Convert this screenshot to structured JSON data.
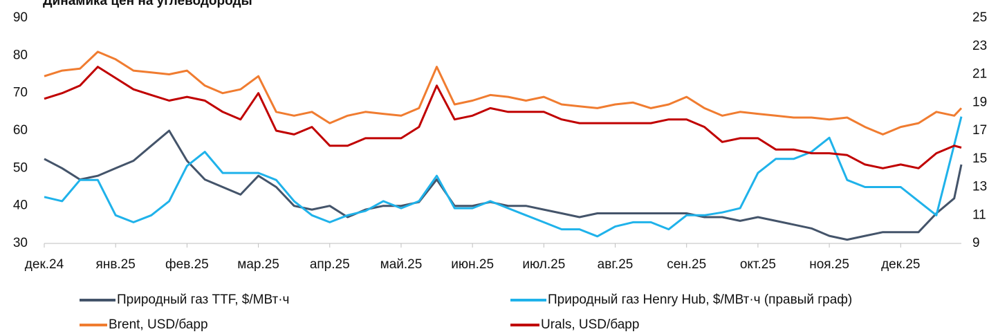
{
  "chart_data": {
    "type": "line",
    "title": "Динамика цен на углеводороды",
    "x": [
      0,
      0.25,
      0.5,
      0.75,
      1,
      1.25,
      1.5,
      1.75,
      2,
      2.25,
      2.5,
      2.75,
      3,
      3.25,
      3.5,
      3.75,
      4,
      4.25,
      4.5,
      4.75,
      5,
      5.25,
      5.5,
      5.75,
      6,
      6.25,
      6.5,
      6.75,
      7,
      7.25,
      7.5,
      7.75,
      8,
      8.25,
      8.5,
      8.75,
      9,
      9.25,
      9.5,
      9.75,
      10,
      10.25,
      10.5,
      10.75,
      11,
      11.25,
      11.5,
      11.75,
      12,
      12.25,
      12.5,
      12.75,
      12.85
    ],
    "xlim": [
      0,
      12.85
    ],
    "xticks": [
      {
        "value": 0,
        "label": "дек.24"
      },
      {
        "value": 1,
        "label": "янв.25"
      },
      {
        "value": 2,
        "label": "фев.25"
      },
      {
        "value": 3,
        "label": "мар.25"
      },
      {
        "value": 4,
        "label": "апр.25"
      },
      {
        "value": 5,
        "label": "май.25"
      },
      {
        "value": 6,
        "label": "июн.25"
      },
      {
        "value": 7,
        "label": "июл.25"
      },
      {
        "value": 8,
        "label": "авг.25"
      },
      {
        "value": 9,
        "label": "сен.25"
      },
      {
        "value": 10,
        "label": "окт.25"
      },
      {
        "value": 11,
        "label": "ноя.25"
      },
      {
        "value": 12,
        "label": "дек.25"
      }
    ],
    "ylim": [
      30,
      90
    ],
    "yticks": [
      30,
      40,
      50,
      60,
      70,
      80,
      90
    ],
    "y2lim": [
      9,
      25
    ],
    "y2ticks": [
      9,
      11,
      13,
      15,
      17,
      19,
      21,
      23,
      25
    ],
    "series": [
      {
        "name": "Природный газ TTF, $/МВт·ч",
        "color": "#44546a",
        "values": [
          52.5,
          50,
          47,
          48,
          50,
          52,
          56,
          60,
          52,
          47,
          45,
          43,
          48,
          45,
          40,
          39,
          40,
          37,
          39,
          40,
          40,
          41,
          47,
          40,
          40,
          41,
          40,
          40,
          39,
          38,
          37,
          38,
          38,
          38,
          38,
          38,
          38,
          37,
          37,
          36,
          37,
          36,
          35,
          34,
          32,
          31,
          32,
          33,
          33,
          33,
          38,
          42,
          51
        ]
      },
      {
        "name": "Природный газ Henry Hub, $/МВт·ч (правый граф)",
        "color": "#1fb2ea",
        "axis": "y2",
        "values": [
          12.3,
          12,
          13.5,
          13.5,
          11,
          10.5,
          11,
          12,
          14.5,
          15.5,
          14,
          14,
          14,
          13.5,
          12,
          11,
          10.5,
          11,
          11.3,
          12,
          11.5,
          12,
          13.8,
          11.5,
          11.5,
          12,
          11.5,
          11,
          10.5,
          10,
          10,
          9.5,
          10.2,
          10.5,
          10.5,
          10,
          11,
          11,
          11.2,
          11.5,
          14,
          15,
          15,
          15.5,
          16.5,
          13.5,
          13,
          13,
          13,
          12,
          11,
          16,
          18
        ]
      },
      {
        "name": "Brent, USD/барр",
        "color": "#f07c30",
        "values": [
          74.5,
          76,
          76.5,
          81,
          79,
          76,
          75.5,
          75,
          76,
          72,
          70,
          71,
          74.5,
          65,
          64,
          65,
          62,
          64,
          65,
          64.5,
          64,
          66,
          77,
          67,
          68,
          69.5,
          69,
          68,
          69,
          67,
          66.5,
          66,
          67,
          67.5,
          66,
          67,
          69,
          66,
          64,
          65,
          64.5,
          64,
          63.5,
          63.5,
          63,
          63.5,
          61,
          59,
          61,
          62,
          65,
          64,
          66
        ]
      },
      {
        "name": "Urals, USD/барр",
        "color": "#c00000",
        "values": [
          68.5,
          70,
          72,
          77,
          74,
          71,
          69.5,
          68,
          69,
          68,
          65,
          63,
          70,
          60,
          59,
          61,
          56,
          56,
          58,
          58,
          58,
          61,
          72,
          63,
          64,
          66,
          65,
          65,
          65,
          63,
          62,
          62,
          62,
          62,
          62,
          63,
          63,
          61,
          57,
          58,
          58,
          55,
          55,
          54,
          54,
          53.5,
          51,
          50,
          51,
          50,
          54,
          56,
          55.5
        ]
      }
    ]
  }
}
